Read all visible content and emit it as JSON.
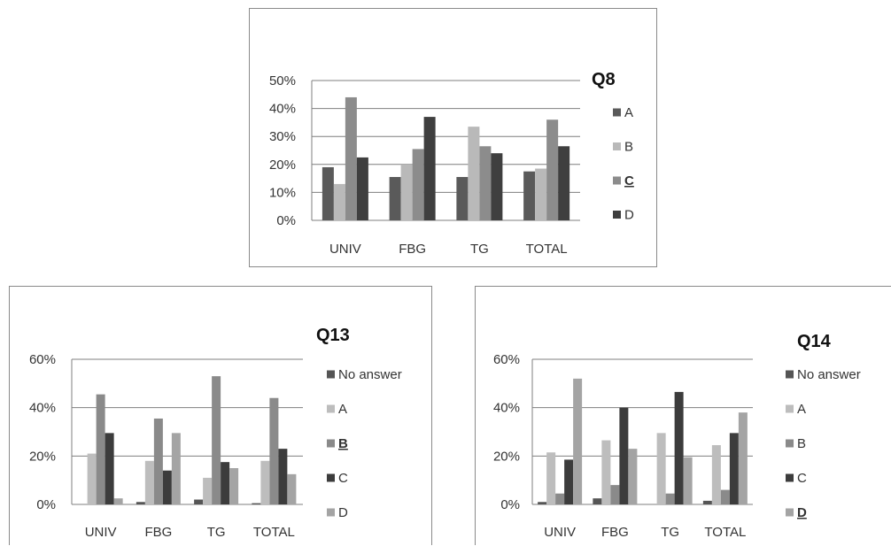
{
  "chart_data": [
    {
      "type": "bar",
      "title": "Q8",
      "categories": [
        "UNIV",
        "FBG",
        "TG",
        "TOTAL"
      ],
      "yticks": [
        "0%",
        "10%",
        "20%",
        "30%",
        "40%",
        "50%"
      ],
      "ylim": [
        0,
        50
      ],
      "series": [
        {
          "name": "A",
          "values": [
            19,
            15.5,
            15.5,
            17.5
          ],
          "color": "#5a5a5a"
        },
        {
          "name": "B",
          "values": [
            13,
            20,
            33.5,
            18.5
          ],
          "color": "#b9b9b9"
        },
        {
          "name": "C",
          "values": [
            44,
            25.5,
            26.5,
            36
          ],
          "color": "#8c8c8c",
          "underline": true
        },
        {
          "name": "D",
          "values": [
            22.5,
            37,
            24,
            26.5
          ],
          "color": "#3f3f3f"
        }
      ],
      "legend": "right",
      "grid": true
    },
    {
      "type": "bar",
      "title": "Q13",
      "categories": [
        "UNIV",
        "FBG",
        "TG",
        "TOTAL"
      ],
      "yticks": [
        "0%",
        "20%",
        "40%",
        "60%"
      ],
      "ylim": [
        0,
        60
      ],
      "series": [
        {
          "name": "No answer",
          "values": [
            0,
            1,
            2,
            0.5
          ],
          "color": "#555555"
        },
        {
          "name": "A",
          "values": [
            21,
            18,
            11,
            18
          ],
          "color": "#bdbdbd"
        },
        {
          "name": "B",
          "values": [
            45.5,
            35.5,
            53,
            44
          ],
          "color": "#8a8a8a",
          "underline": true
        },
        {
          "name": "C",
          "values": [
            29.5,
            14,
            17.5,
            23
          ],
          "color": "#3c3c3c"
        },
        {
          "name": "D",
          "values": [
            2.5,
            29.5,
            15,
            12.5
          ],
          "color": "#a4a4a4"
        }
      ],
      "legend": "right",
      "grid": true
    },
    {
      "type": "bar",
      "title": "Q14",
      "categories": [
        "UNIV",
        "FBG",
        "TG",
        "TOTAL"
      ],
      "yticks": [
        "0%",
        "20%",
        "40%",
        "60%"
      ],
      "ylim": [
        0,
        60
      ],
      "series": [
        {
          "name": "No answer",
          "values": [
            1,
            2.5,
            0,
            1.5
          ],
          "color": "#555555"
        },
        {
          "name": "A",
          "values": [
            21.5,
            26.5,
            29.5,
            24.5
          ],
          "color": "#bdbdbd"
        },
        {
          "name": "B",
          "values": [
            4.5,
            8,
            4.5,
            6
          ],
          "color": "#8a8a8a"
        },
        {
          "name": "C",
          "values": [
            18.5,
            40,
            46.5,
            29.5
          ],
          "color": "#3c3c3c"
        },
        {
          "name": "D",
          "values": [
            52,
            23,
            19.5,
            38
          ],
          "color": "#a4a4a4",
          "underline": true
        }
      ],
      "legend": "right",
      "grid": true
    }
  ]
}
